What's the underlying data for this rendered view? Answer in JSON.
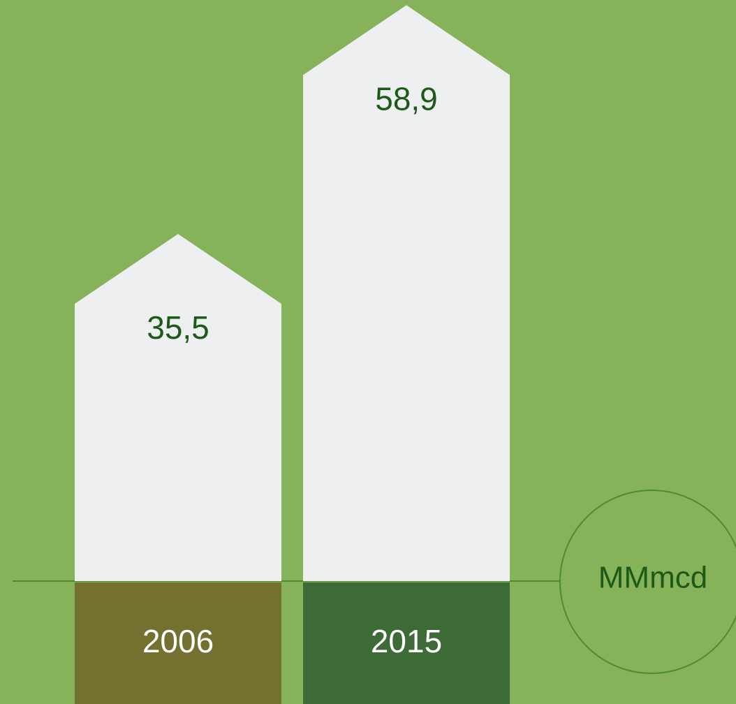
{
  "chart_data": {
    "type": "bar",
    "categories": [
      "2006",
      "2015"
    ],
    "values": [
      35.5,
      58.9
    ],
    "value_labels": [
      "35,5",
      "58,9"
    ],
    "unit": "MMmcd",
    "color": "#eeeff1",
    "category_colors": [
      "#747130",
      "#3d6b35"
    ]
  }
}
